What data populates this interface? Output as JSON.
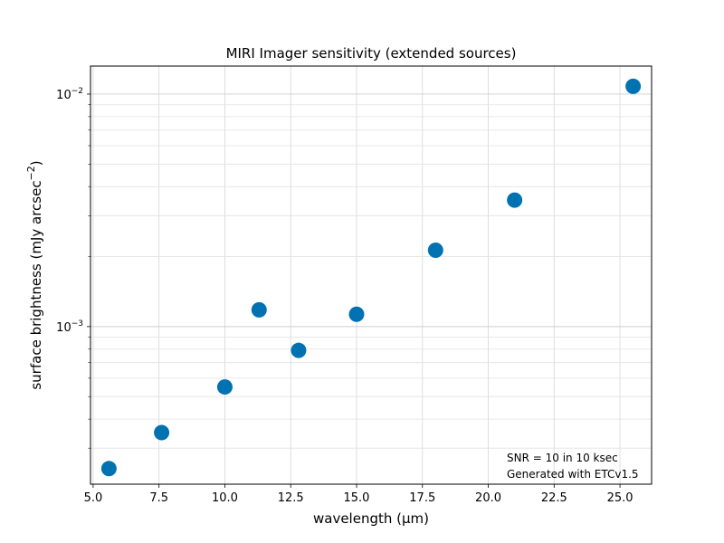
{
  "chart_data": {
    "type": "scatter",
    "title": "MIRI Imager sensitivity (extended sources)",
    "xlabel": "wavelength (μm)",
    "ylabel": "surface brightness (mJy arcsec",
    "ylabel_exp": "−2",
    "ylabel_suffix": ")",
    "y_scale": "log",
    "xlim": [
      4.9,
      26.2
    ],
    "ylim": [
      0.00021,
      0.0132
    ],
    "grid": true,
    "x_ticks": [
      5.0,
      7.5,
      10.0,
      12.5,
      15.0,
      17.5,
      20.0,
      22.5,
      25.0
    ],
    "x_tick_labels": [
      "5.0",
      "7.5",
      "10.0",
      "12.5",
      "15.0",
      "17.5",
      "20.0",
      "22.5",
      "25.0"
    ],
    "y_major_ticks": [
      0.001,
      0.01
    ],
    "y_major_tick_labels": [
      {
        "base": "10",
        "exp": "−3"
      },
      {
        "base": "10",
        "exp": "−2"
      }
    ],
    "marker_color": "#0072b2",
    "points": [
      {
        "x": 5.6,
        "y": 0.000245
      },
      {
        "x": 7.6,
        "y": 0.00035
      },
      {
        "x": 10.0,
        "y": 0.00055
      },
      {
        "x": 11.3,
        "y": 0.00118
      },
      {
        "x": 12.8,
        "y": 0.00079
      },
      {
        "x": 15.0,
        "y": 0.00113
      },
      {
        "x": 18.0,
        "y": 0.00213
      },
      {
        "x": 21.0,
        "y": 0.0035
      },
      {
        "x": 25.5,
        "y": 0.0108
      }
    ],
    "annotations": [
      "SNR = 10 in 10 ksec",
      "Generated with ETCv1.5"
    ]
  }
}
